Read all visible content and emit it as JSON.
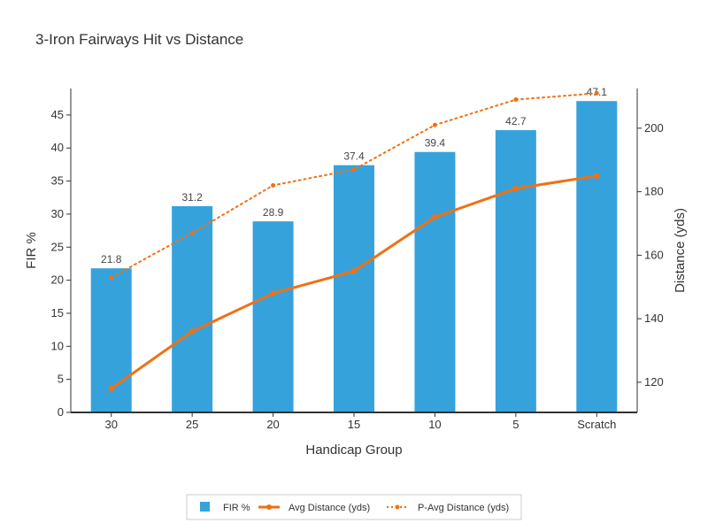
{
  "chart_data": {
    "type": "bar",
    "title": "3-Iron Fairways Hit vs Distance",
    "xlabel": "Handicap Group",
    "ylabel": "FIR %",
    "y2label": "Distance (yds)",
    "categories": [
      "30",
      "25",
      "20",
      "15",
      "10",
      "5",
      "Scratch"
    ],
    "ylim": [
      0,
      49
    ],
    "y2lim": [
      110.5,
      212.5
    ],
    "yticks": [
      0,
      5,
      10,
      15,
      20,
      25,
      30,
      35,
      40,
      45
    ],
    "y2ticks": [
      120,
      140,
      160,
      180,
      200
    ],
    "grid": false,
    "legend_position": "bottom-center",
    "series": [
      {
        "name": "FIR %",
        "type": "bar",
        "axis": "left",
        "color": "#36a2dc",
        "values": [
          21.8,
          31.2,
          28.9,
          37.4,
          39.4,
          42.7,
          47.1
        ],
        "labels": [
          "21.8",
          "31.2",
          "28.9",
          "37.4",
          "39.4",
          "42.7",
          "47.1"
        ]
      },
      {
        "name": "Avg Distance (yds)",
        "type": "line",
        "axis": "right",
        "color": "#f07014",
        "style": "solid",
        "values": [
          118,
          136,
          148,
          155,
          172,
          181,
          185
        ]
      },
      {
        "name": "P-Avg Distance (yds)",
        "type": "line",
        "axis": "right",
        "color": "#f07014",
        "style": "dotted",
        "values": [
          153,
          167,
          182,
          187,
          201,
          209,
          211
        ]
      }
    ]
  }
}
